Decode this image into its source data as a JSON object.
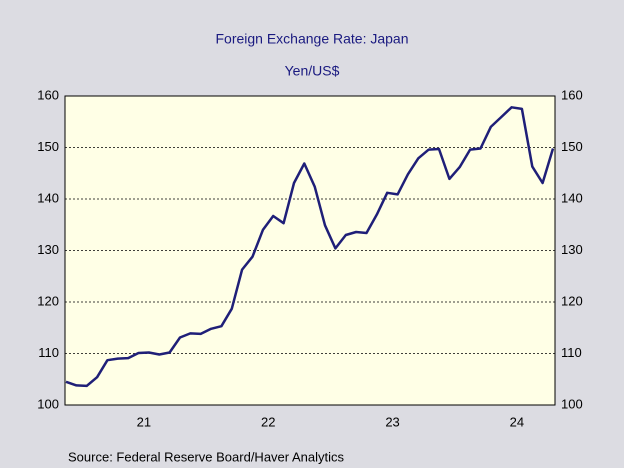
{
  "chart_data": {
    "type": "line",
    "title": "Foreign Exchange Rate: Japan",
    "subtitle": "Yen/US$",
    "source": "Source:  Federal Reserve Board/Haver Analytics",
    "categories": [
      null,
      null,
      null,
      null,
      null,
      null,
      null,
      null,
      "21",
      null,
      null,
      null,
      null,
      null,
      null,
      null,
      null,
      null,
      null,
      null,
      "22",
      null,
      null,
      null,
      null,
      null,
      null,
      null,
      null,
      null,
      null,
      null,
      "23",
      null,
      null,
      null,
      null,
      null,
      null,
      null,
      null,
      null,
      null,
      null,
      "24",
      null,
      null,
      null
    ],
    "series": [
      {
        "name": "Yen/US$",
        "color": "#1f1f78",
        "values": [
          104.5,
          103.8,
          103.7,
          105.4,
          108.7,
          109.0,
          109.1,
          110.1,
          110.2,
          109.8,
          110.2,
          113.1,
          113.9,
          113.8,
          114.8,
          115.3,
          118.7,
          126.3,
          128.8,
          134.0,
          136.7,
          135.3,
          143.1,
          146.9,
          142.4,
          134.9,
          130.4,
          133.0,
          133.6,
          133.4,
          137.0,
          141.2,
          140.9,
          144.8,
          147.9,
          149.6,
          149.7,
          143.9,
          146.2,
          149.6,
          149.8,
          154.0,
          155.9,
          157.8,
          157.5,
          146.3,
          143.1,
          149.8
        ]
      }
    ],
    "ylim": [
      100,
      160
    ],
    "yticks": [
      100,
      110,
      120,
      130,
      140,
      150,
      160
    ],
    "grid": true
  }
}
